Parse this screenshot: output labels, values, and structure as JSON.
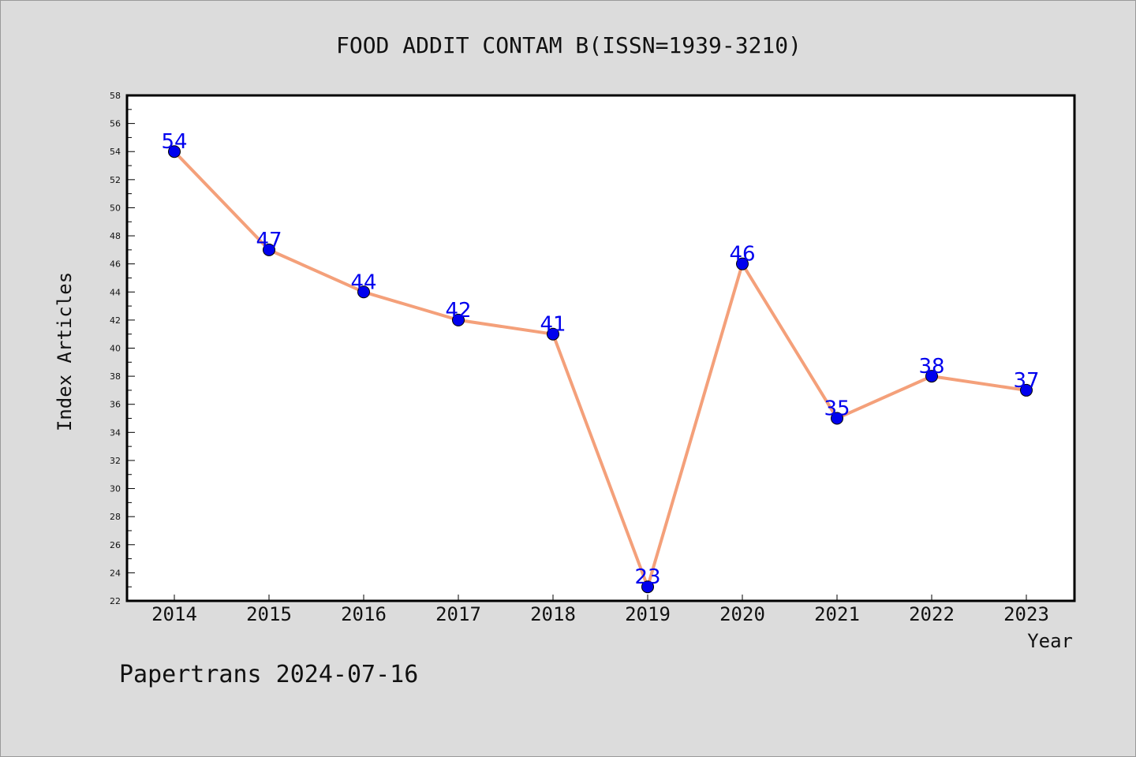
{
  "chart_data": {
    "type": "line",
    "title": "FOOD ADDIT CONTAM B(ISSN=1939-3210)",
    "xlabel": "Year",
    "ylabel": "Index Articles",
    "footer": "Papertrans 2024-07-16",
    "categories": [
      "2014",
      "2015",
      "2016",
      "2017",
      "2018",
      "2019",
      "2020",
      "2021",
      "2022",
      "2023"
    ],
    "series": [
      {
        "values": [
          54,
          47,
          44,
          42,
          41,
          23,
          46,
          35,
          38,
          37
        ]
      }
    ],
    "ylim": [
      22,
      58
    ],
    "yticks": [
      22,
      24,
      26,
      28,
      30,
      32,
      34,
      36,
      38,
      40,
      42,
      44,
      46,
      48,
      50,
      52,
      54,
      56,
      58
    ],
    "grid": false,
    "legend": "none",
    "data_labels": true,
    "colors": {
      "background": "#dcdcdc",
      "plot_background": "#ffffff",
      "line": "#f4a07a",
      "marker": "#0000ee",
      "label": "#0000ee",
      "text": "#111111"
    }
  }
}
